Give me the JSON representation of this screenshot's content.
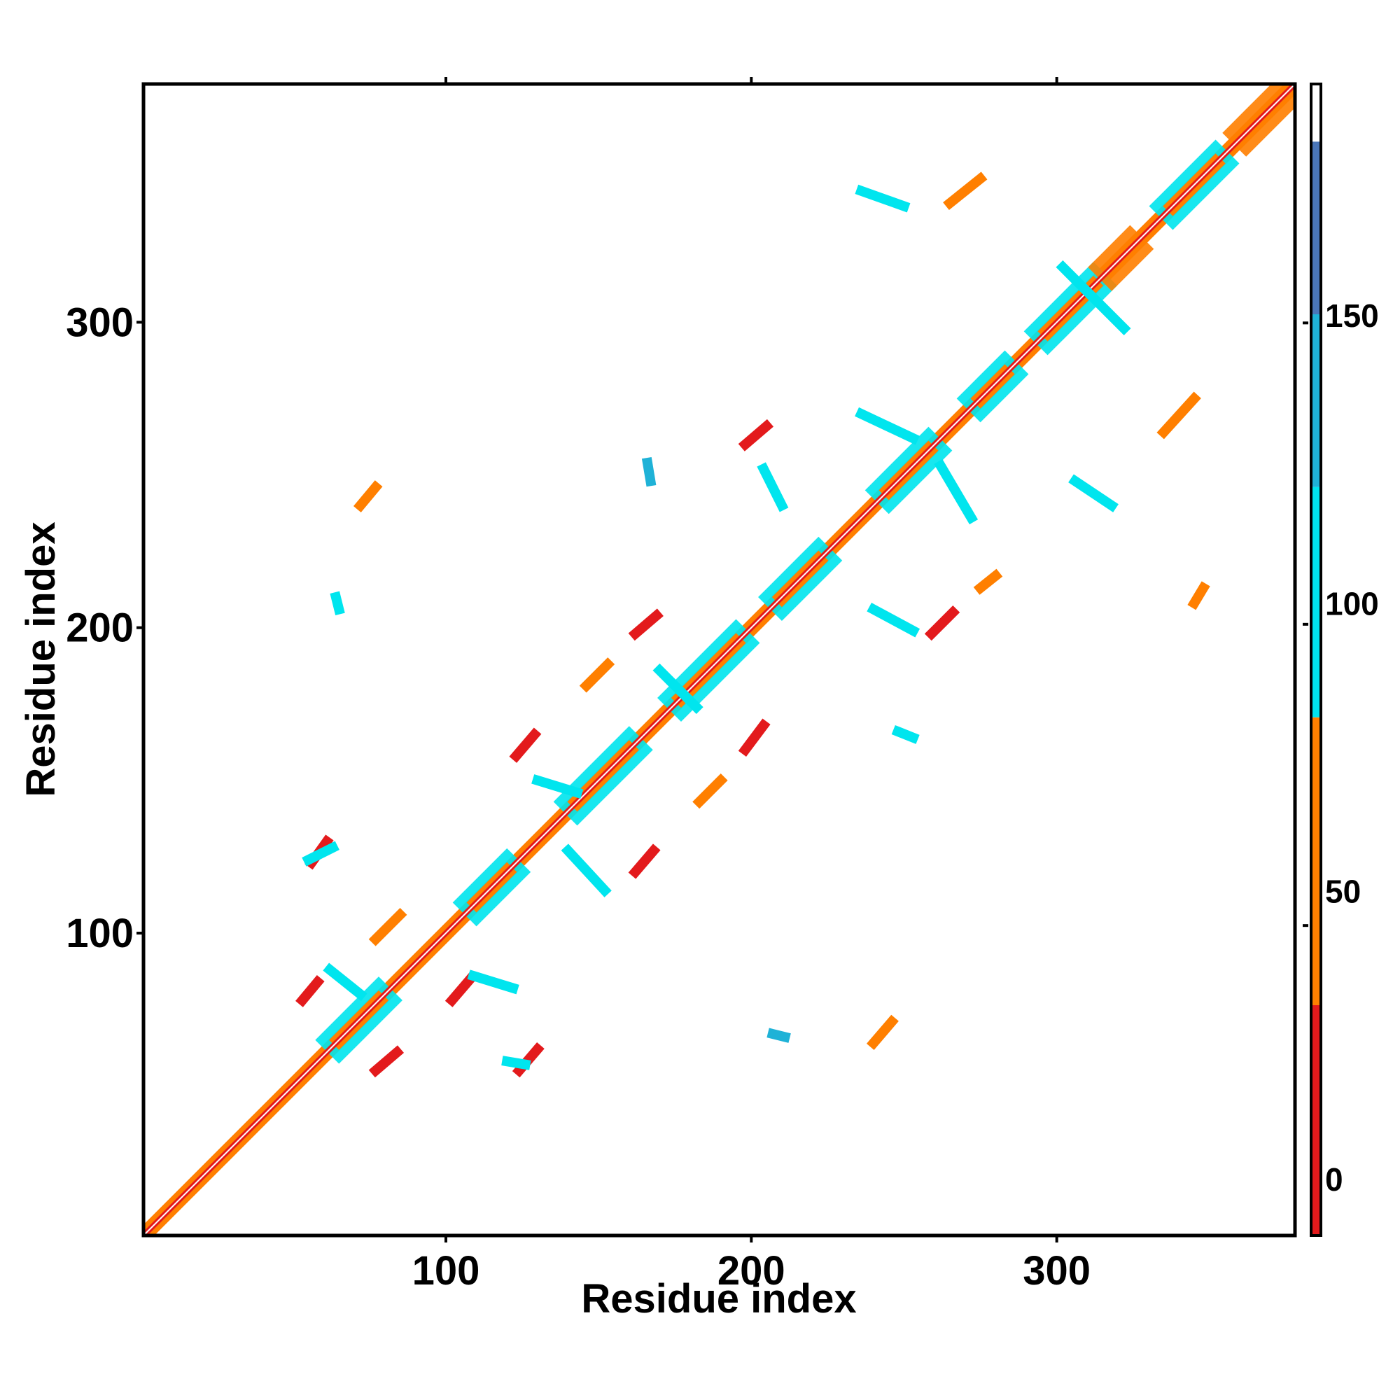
{
  "chart_data": {
    "type": "heatmap",
    "title": "",
    "xlabel": "Residue index",
    "ylabel": "Residue index",
    "xlim": [
      1,
      378
    ],
    "ylim": [
      1,
      378
    ],
    "x_ticks": [
      100,
      200,
      300
    ],
    "y_ticks": [
      100,
      200,
      300
    ],
    "colorbar": {
      "range": [
        -10,
        190
      ],
      "ticks": [
        0,
        50,
        100,
        150
      ],
      "bands": [
        {
          "from": -10,
          "to": 30,
          "color": "#e31a1c"
        },
        {
          "from": 30,
          "to": 80,
          "color": "#ff7f00"
        },
        {
          "from": 80,
          "to": 120,
          "color": "#00e5ee"
        },
        {
          "from": 120,
          "to": 150,
          "color": "#1fb2d7"
        },
        {
          "from": 150,
          "to": 180,
          "color": "#4a76b8"
        },
        {
          "from": 180,
          "to": 190,
          "color": "#ffffff"
        }
      ]
    },
    "diagonal": {
      "from": 1,
      "to": 378
    },
    "diagonal_blocks": [
      {
        "from": 65,
        "to": 78,
        "color": "#00e5ee"
      },
      {
        "from": 110,
        "to": 120,
        "color": "#00e5ee"
      },
      {
        "from": 143,
        "to": 160,
        "color": "#00e5ee"
      },
      {
        "from": 177,
        "to": 195,
        "color": "#00e5ee"
      },
      {
        "from": 210,
        "to": 222,
        "color": "#00e5ee"
      },
      {
        "from": 245,
        "to": 258,
        "color": "#00e5ee"
      },
      {
        "from": 275,
        "to": 283,
        "color": "#00e5ee"
      },
      {
        "from": 297,
        "to": 312,
        "color": "#00e5ee"
      },
      {
        "from": 318,
        "to": 324,
        "color": "#ff7f00"
      },
      {
        "from": 338,
        "to": 352,
        "color": "#00e5ee"
      },
      {
        "from": 362,
        "to": 376,
        "color": "#ff7f00"
      }
    ],
    "contacts": [
      {
        "x1": 56,
        "y1": 123,
        "x2": 61,
        "y2": 130,
        "color": "#e31a1c"
      },
      {
        "x1": 53,
        "y1": 78,
        "x2": 58,
        "y2": 84,
        "color": "#e31a1c"
      },
      {
        "x1": 77,
        "y1": 98,
        "x2": 85,
        "y2": 106,
        "color": "#ff7f00"
      },
      {
        "x1": 77,
        "y1": 55,
        "x2": 84,
        "y2": 61,
        "color": "#e31a1c"
      },
      {
        "x1": 102,
        "y1": 78,
        "x2": 108,
        "y2": 85,
        "color": "#e31a1c"
      },
      {
        "x1": 124,
        "y1": 55,
        "x2": 130,
        "y2": 62,
        "color": "#e31a1c"
      },
      {
        "x1": 123,
        "y1": 158,
        "x2": 129,
        "y2": 165,
        "color": "#e31a1c"
      },
      {
        "x1": 162,
        "y1": 120,
        "x2": 168,
        "y2": 127,
        "color": "#e31a1c"
      },
      {
        "x1": 162,
        "y1": 198,
        "x2": 169,
        "y2": 204,
        "color": "#e31a1c"
      },
      {
        "x1": 198,
        "y1": 160,
        "x2": 204,
        "y2": 168,
        "color": "#e31a1c"
      },
      {
        "x1": 198,
        "y1": 260,
        "x2": 205,
        "y2": 266,
        "color": "#e31a1c"
      },
      {
        "x1": 259,
        "y1": 198,
        "x2": 266,
        "y2": 205,
        "color": "#e31a1c"
      },
      {
        "x1": 72,
        "y1": 240,
        "x2": 77,
        "y2": 246,
        "color": "#ff7f00"
      },
      {
        "x1": 146,
        "y1": 181,
        "x2": 153,
        "y2": 188,
        "color": "#ff7f00"
      },
      {
        "x1": 183,
        "y1": 143,
        "x2": 190,
        "y2": 150,
        "color": "#ff7f00"
      },
      {
        "x1": 240,
        "y1": 64,
        "x2": 246,
        "y2": 71,
        "color": "#ff7f00"
      },
      {
        "x1": 265,
        "y1": 339,
        "x2": 275,
        "y2": 347,
        "color": "#ff7f00"
      },
      {
        "x1": 335,
        "y1": 264,
        "x2": 345,
        "y2": 275,
        "color": "#ff7f00"
      },
      {
        "x1": 345,
        "y1": 208,
        "x2": 348,
        "y2": 213,
        "color": "#ff7f00"
      },
      {
        "x1": 275,
        "y1": 213,
        "x2": 280,
        "y2": 217,
        "color": "#ff7f00"
      },
      {
        "x1": 236,
        "y1": 270,
        "x2": 253,
        "y2": 262,
        "color": "#00e5ee"
      },
      {
        "x1": 262,
        "y1": 253,
        "x2": 272,
        "y2": 236,
        "color": "#00e5ee"
      },
      {
        "x1": 236,
        "y1": 343,
        "x2": 250,
        "y2": 338,
        "color": "#00e5ee"
      },
      {
        "x1": 306,
        "y1": 248,
        "x2": 318,
        "y2": 240,
        "color": "#00e5ee"
      },
      {
        "x1": 302,
        "y1": 318,
        "x2": 322,
        "y2": 298,
        "color": "#00e5ee"
      },
      {
        "x1": 204,
        "y1": 252,
        "x2": 210,
        "y2": 240,
        "color": "#00e5ee"
      },
      {
        "x1": 170,
        "y1": 186,
        "x2": 182,
        "y2": 174,
        "color": "#00e5ee"
      },
      {
        "x1": 140,
        "y1": 127,
        "x2": 152,
        "y2": 114,
        "color": "#00e5ee"
      },
      {
        "x1": 240,
        "y1": 206,
        "x2": 253,
        "y2": 199,
        "color": "#00e5ee"
      },
      {
        "x1": 248,
        "y1": 166,
        "x2": 253,
        "y2": 164,
        "color": "#00e5ee"
      },
      {
        "x1": 207,
        "y1": 67,
        "x2": 211,
        "y2": 66,
        "color": "#1fb2d7"
      },
      {
        "x1": 62,
        "y1": 88,
        "x2": 72,
        "y2": 80,
        "color": "#00e5ee"
      },
      {
        "x1": 109,
        "y1": 86,
        "x2": 122,
        "y2": 82,
        "color": "#00e5ee"
      },
      {
        "x1": 120,
        "y1": 58,
        "x2": 126,
        "y2": 57,
        "color": "#00e5ee"
      },
      {
        "x1": 55,
        "y1": 124,
        "x2": 63,
        "y2": 128,
        "color": "#00e5ee"
      },
      {
        "x1": 64,
        "y1": 210,
        "x2": 65,
        "y2": 206,
        "color": "#00e5ee"
      },
      {
        "x1": 166,
        "y1": 254,
        "x2": 167,
        "y2": 248,
        "color": "#1fb2d7"
      },
      {
        "x1": 130,
        "y1": 150,
        "x2": 143,
        "y2": 146,
        "color": "#00e5ee"
      }
    ]
  }
}
